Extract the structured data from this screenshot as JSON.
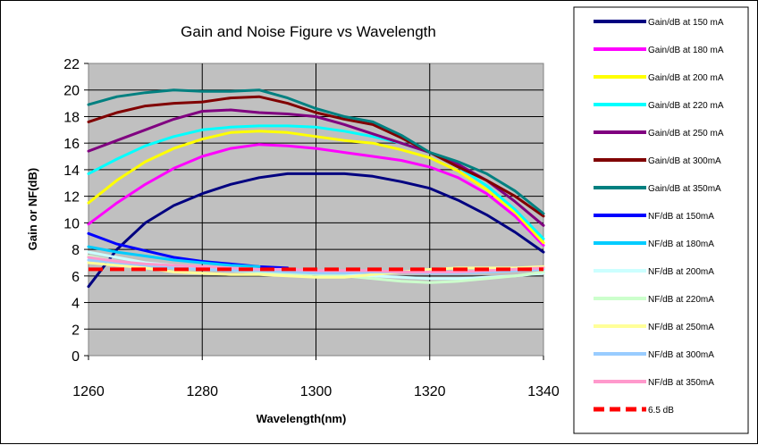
{
  "chart_data": {
    "type": "line",
    "title": "Gain and Noise Figure vs Wavelength",
    "xlabel": "Wavelength(nm)",
    "ylabel": "Gain or NF(dB)",
    "xlim": [
      1260,
      1340
    ],
    "ylim": [
      0,
      22
    ],
    "x_ticks": [
      "1260",
      "1280",
      "1300",
      "1320",
      "1340"
    ],
    "y_ticks": [
      "0",
      "2",
      "4",
      "6",
      "8",
      "10",
      "12",
      "14",
      "16",
      "18",
      "20",
      "22"
    ],
    "grid": true,
    "legend_position": "right",
    "plot_background": "#c0c0c0",
    "series": [
      {
        "name": "Gain/dB at 150 mA",
        "color": "#000080",
        "width": 3,
        "dash": false,
        "x": [
          1260,
          1265,
          1270,
          1275,
          1280,
          1285,
          1290,
          1295,
          1300,
          1305,
          1310,
          1315,
          1320,
          1325,
          1330,
          1335,
          1340
        ],
        "y": [
          5.2,
          8.0,
          10.0,
          11.3,
          12.2,
          12.9,
          13.4,
          13.7,
          13.7,
          13.7,
          13.5,
          13.1,
          12.6,
          11.7,
          10.6,
          9.3,
          7.8
        ]
      },
      {
        "name": "Gain/dB at 180 mA",
        "color": "#ff00ff",
        "width": 3,
        "dash": false,
        "x": [
          1260,
          1265,
          1270,
          1275,
          1280,
          1285,
          1290,
          1295,
          1300,
          1305,
          1310,
          1315,
          1320,
          1325,
          1330,
          1335,
          1340
        ],
        "y": [
          9.9,
          11.5,
          12.9,
          14.1,
          15.0,
          15.6,
          15.9,
          15.8,
          15.6,
          15.3,
          15.0,
          14.7,
          14.2,
          13.4,
          12.2,
          10.5,
          8.3
        ]
      },
      {
        "name": "Gain/dB at 200 mA",
        "color": "#ffff00",
        "width": 3,
        "dash": false,
        "x": [
          1260,
          1265,
          1270,
          1275,
          1280,
          1285,
          1290,
          1295,
          1300,
          1305,
          1310,
          1315,
          1320,
          1325,
          1330,
          1335,
          1340
        ],
        "y": [
          11.5,
          13.2,
          14.6,
          15.6,
          16.3,
          16.8,
          16.9,
          16.8,
          16.5,
          16.2,
          16.0,
          15.5,
          14.9,
          13.9,
          12.5,
          10.8,
          8.5
        ]
      },
      {
        "name": "Gain/dB at 220 mA",
        "color": "#00ffff",
        "width": 3,
        "dash": false,
        "x": [
          1260,
          1265,
          1270,
          1275,
          1280,
          1285,
          1290,
          1295,
          1300,
          1305,
          1310,
          1315,
          1320,
          1325,
          1330,
          1335,
          1340
        ],
        "y": [
          13.7,
          14.8,
          15.8,
          16.5,
          17.0,
          17.2,
          17.3,
          17.3,
          17.2,
          16.9,
          16.5,
          16.0,
          15.3,
          14.2,
          12.8,
          11.0,
          8.8
        ]
      },
      {
        "name": "Gain/dB at 250 mA",
        "color": "#800080",
        "width": 3,
        "dash": false,
        "x": [
          1260,
          1265,
          1270,
          1275,
          1280,
          1285,
          1290,
          1295,
          1300,
          1305,
          1310,
          1315,
          1320,
          1325,
          1330,
          1335,
          1340
        ],
        "y": [
          15.4,
          16.2,
          17.0,
          17.8,
          18.4,
          18.5,
          18.3,
          18.2,
          18.0,
          17.4,
          16.7,
          16.0,
          15.3,
          14.4,
          13.2,
          11.6,
          9.8
        ]
      },
      {
        "name": "Gain/dB at 300mA",
        "color": "#800000",
        "width": 3,
        "dash": false,
        "x": [
          1260,
          1265,
          1270,
          1275,
          1280,
          1285,
          1290,
          1295,
          1300,
          1305,
          1310,
          1315,
          1320,
          1325,
          1330,
          1335,
          1340
        ],
        "y": [
          17.6,
          18.3,
          18.8,
          19.0,
          19.1,
          19.4,
          19.5,
          19.0,
          18.3,
          17.8,
          17.4,
          16.4,
          15.3,
          14.2,
          13.2,
          12.0,
          10.5
        ]
      },
      {
        "name": "Gain/dB at 350mA",
        "color": "#008080",
        "width": 3,
        "dash": false,
        "x": [
          1260,
          1265,
          1270,
          1275,
          1280,
          1285,
          1290,
          1295,
          1300,
          1305,
          1310,
          1315,
          1320,
          1325,
          1330,
          1335,
          1340
        ],
        "y": [
          18.9,
          19.5,
          19.8,
          20.0,
          19.9,
          19.9,
          20.0,
          19.4,
          18.6,
          18.0,
          17.6,
          16.6,
          15.3,
          14.6,
          13.7,
          12.4,
          10.7
        ]
      },
      {
        "name": "NF/dB at 150mA",
        "color": "#0000ff",
        "width": 3,
        "dash": false,
        "x": [
          1260,
          1265,
          1270,
          1275,
          1280,
          1285,
          1290,
          1295
        ],
        "y": [
          9.2,
          8.4,
          7.9,
          7.4,
          7.1,
          6.9,
          6.7,
          6.6
        ]
      },
      {
        "name": "NF/dB at 180mA",
        "color": "#00ccff",
        "width": 3,
        "dash": false,
        "x": [
          1260,
          1265,
          1270,
          1275,
          1280,
          1285,
          1290
        ],
        "y": [
          8.2,
          7.8,
          7.5,
          7.2,
          7.0,
          6.8,
          6.7
        ]
      },
      {
        "name": "NF/dB at 200mA",
        "color": "#ccffff",
        "width": 3,
        "dash": false,
        "x": [
          1260,
          1265,
          1270,
          1275,
          1280,
          1285,
          1290,
          1295,
          1300,
          1305,
          1310,
          1315,
          1320,
          1325,
          1330,
          1335,
          1340
        ],
        "y": [
          7.8,
          7.4,
          7.0,
          6.8,
          6.6,
          6.4,
          6.3,
          6.2,
          6.1,
          6.1,
          6.0,
          5.9,
          5.8,
          5.8,
          5.9,
          6.0,
          6.2
        ]
      },
      {
        "name": "NF/dB at 220mA",
        "color": "#ccffcc",
        "width": 3,
        "dash": false,
        "x": [
          1260,
          1265,
          1270,
          1275,
          1280,
          1285,
          1290,
          1295,
          1300,
          1305,
          1310,
          1315,
          1320,
          1325,
          1330,
          1335,
          1340
        ],
        "y": [
          7.5,
          7.1,
          6.8,
          6.6,
          6.5,
          6.4,
          6.3,
          6.2,
          6.1,
          6.0,
          5.8,
          5.6,
          5.5,
          5.6,
          5.8,
          6.0,
          6.3
        ]
      },
      {
        "name": "NF/dB at 250mA",
        "color": "#ffff99",
        "width": 3,
        "dash": false,
        "x": [
          1260,
          1265,
          1270,
          1275,
          1280,
          1285,
          1290,
          1295,
          1300,
          1305,
          1310,
          1315,
          1320,
          1325,
          1330,
          1335,
          1340
        ],
        "y": [
          7.0,
          6.8,
          6.6,
          6.3,
          6.2,
          6.1,
          6.1,
          6.0,
          5.9,
          5.9,
          6.1,
          6.3,
          6.5,
          6.6,
          6.6,
          6.6,
          6.7
        ]
      },
      {
        "name": "NF/dB at 300mA",
        "color": "#99ccff",
        "width": 3,
        "dash": false,
        "x": [
          1260,
          1265,
          1270,
          1275,
          1280,
          1285,
          1290,
          1295,
          1300,
          1305,
          1310,
          1315,
          1320,
          1325,
          1330,
          1335,
          1340
        ],
        "y": [
          7.2,
          7.0,
          6.8,
          6.6,
          6.5,
          6.4,
          6.4,
          6.3,
          6.2,
          6.2,
          6.3,
          6.3,
          6.2,
          6.2,
          6.3,
          6.4,
          6.5
        ]
      },
      {
        "name": "NF/dB at 350mA",
        "color": "#ff99cc",
        "width": 3,
        "dash": false,
        "x": [
          1260,
          1265,
          1270,
          1275,
          1280,
          1285,
          1290,
          1295,
          1300,
          1305,
          1310,
          1315,
          1320,
          1325,
          1330,
          1335,
          1340
        ],
        "y": [
          7.4,
          7.1,
          6.9,
          6.8,
          6.7,
          6.6,
          6.5,
          6.5,
          6.4,
          6.4,
          6.4,
          6.3,
          6.3,
          6.3,
          6.4,
          6.5,
          6.6
        ]
      },
      {
        "name": "6.5 dB",
        "color": "#ff0000",
        "width": 4,
        "dash": true,
        "x": [
          1260,
          1340
        ],
        "y": [
          6.5,
          6.5
        ]
      }
    ]
  }
}
